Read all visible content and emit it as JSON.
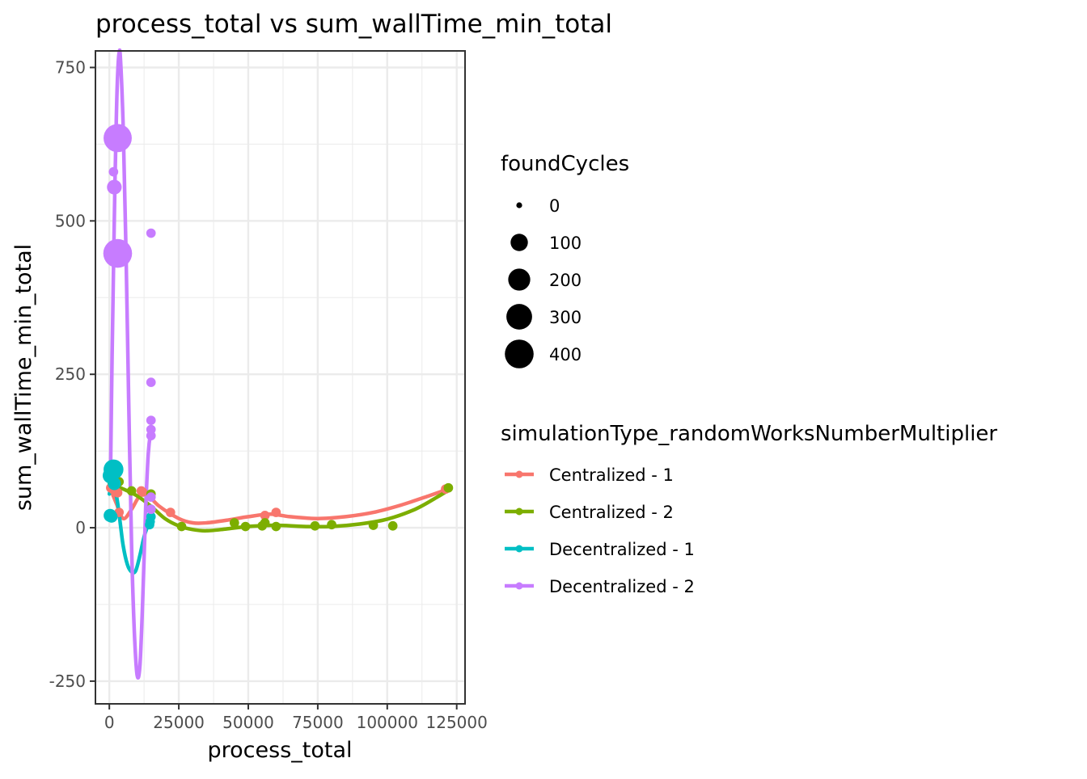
{
  "chart_data": {
    "type": "scatter",
    "title": "process_total  vs  sum_wallTime_min_total",
    "xlabel": "process_total",
    "ylabel": "sum_wallTime_min_total",
    "xlim": [
      -5000,
      128000
    ],
    "ylim": [
      -287,
      777
    ],
    "x_ticks": [
      0,
      25000,
      50000,
      75000,
      100000,
      125000
    ],
    "x_tick_labels": [
      "0",
      "25000",
      "50000",
      "75000",
      "100000",
      "125000"
    ],
    "y_ticks": [
      -250,
      0,
      250,
      500,
      750
    ],
    "y_tick_labels": [
      "-250",
      "0",
      "250",
      "500",
      "750"
    ],
    "grid": true,
    "legend_position": "right",
    "size_legend": {
      "title": "foundCycles",
      "entries": [
        {
          "label": "0",
          "value": 0
        },
        {
          "label": "100",
          "value": 100
        },
        {
          "label": "200",
          "value": 200
        },
        {
          "label": "300",
          "value": 300
        },
        {
          "label": "400",
          "value": 400
        }
      ]
    },
    "color_legend_title": "simulationType_randomWorksNumberMultiplier",
    "series": [
      {
        "name": "Centralized - 1",
        "color": "#F8766D",
        "points": [
          [
            500,
            65,
            10
          ],
          [
            1500,
            62,
            10
          ],
          [
            3000,
            57,
            10
          ],
          [
            3500,
            25,
            10
          ],
          [
            11500,
            60,
            10
          ],
          [
            12000,
            58,
            10
          ],
          [
            22000,
            25,
            10
          ],
          [
            56000,
            20,
            10
          ],
          [
            60000,
            25,
            10
          ],
          [
            121000,
            63,
            10
          ]
        ],
        "smooth": [
          [
            0,
            68
          ],
          [
            2500,
            40
          ],
          [
            5000,
            15
          ],
          [
            8000,
            30
          ],
          [
            11000,
            52
          ],
          [
            14000,
            52
          ],
          [
            18000,
            35
          ],
          [
            25000,
            15
          ],
          [
            30000,
            8
          ],
          [
            35000,
            8
          ],
          [
            42000,
            12
          ],
          [
            50000,
            18
          ],
          [
            58000,
            22
          ],
          [
            65000,
            18
          ],
          [
            75000,
            15
          ],
          [
            85000,
            18
          ],
          [
            95000,
            25
          ],
          [
            105000,
            37
          ],
          [
            115000,
            52
          ],
          [
            122500,
            64
          ]
        ]
      },
      {
        "name": "Centralized - 2",
        "color": "#7CAE00",
        "points": [
          [
            3500,
            75,
            10
          ],
          [
            8000,
            60,
            10
          ],
          [
            15000,
            55,
            10
          ],
          [
            26000,
            2,
            10
          ],
          [
            45000,
            8,
            10
          ],
          [
            49000,
            2,
            10
          ],
          [
            55000,
            3,
            10
          ],
          [
            56000,
            8,
            10
          ],
          [
            60000,
            2,
            10
          ],
          [
            74000,
            3,
            10
          ],
          [
            80000,
            5,
            10
          ],
          [
            95000,
            4,
            10
          ],
          [
            102000,
            3,
            10
          ],
          [
            122000,
            65,
            10
          ]
        ],
        "smooth": [
          [
            0,
            72
          ],
          [
            5000,
            63
          ],
          [
            10000,
            52
          ],
          [
            15000,
            35
          ],
          [
            20000,
            15
          ],
          [
            25000,
            3
          ],
          [
            30000,
            -3
          ],
          [
            35000,
            -5
          ],
          [
            42000,
            -2
          ],
          [
            50000,
            2
          ],
          [
            60000,
            4
          ],
          [
            70000,
            2
          ],
          [
            80000,
            2
          ],
          [
            90000,
            6
          ],
          [
            100000,
            14
          ],
          [
            110000,
            30
          ],
          [
            118000,
            50
          ],
          [
            123000,
            64
          ]
        ]
      },
      {
        "name": "Decentralized - 1",
        "color": "#00BFC4",
        "points": [
          [
            500,
            85,
            80
          ],
          [
            1500,
            95,
            150
          ],
          [
            1800,
            72,
            40
          ],
          [
            300,
            20,
            40
          ],
          [
            800,
            18,
            30
          ],
          [
            14500,
            5,
            10
          ],
          [
            14700,
            10,
            10
          ],
          [
            15000,
            18,
            10
          ],
          [
            15000,
            30,
            10
          ]
        ],
        "smooth": [
          [
            0,
            55
          ],
          [
            1000,
            73
          ],
          [
            2000,
            65
          ],
          [
            3000,
            40
          ],
          [
            4000,
            5
          ],
          [
            5000,
            -30
          ],
          [
            6500,
            -60
          ],
          [
            8000,
            -72
          ],
          [
            9500,
            -70
          ],
          [
            11000,
            -45
          ],
          [
            12500,
            -15
          ],
          [
            14000,
            5
          ],
          [
            15000,
            15
          ]
        ]
      },
      {
        "name": "Decentralized - 2",
        "color": "#C77CFF",
        "points": [
          [
            1500,
            580,
            10
          ],
          [
            1800,
            555,
            60
          ],
          [
            3000,
            635,
            380
          ],
          [
            3000,
            447,
            400
          ],
          [
            15000,
            480,
            10
          ],
          [
            15000,
            237,
            10
          ],
          [
            15000,
            175,
            10
          ],
          [
            15000,
            160,
            10
          ],
          [
            15000,
            150,
            10
          ],
          [
            15000,
            50,
            10
          ],
          [
            15000,
            30,
            10
          ]
        ],
        "smooth": [
          [
            500,
            110
          ],
          [
            1000,
            280
          ],
          [
            1500,
            420
          ],
          [
            2000,
            560
          ],
          [
            2500,
            665
          ],
          [
            3000,
            740
          ],
          [
            3500,
            773
          ],
          [
            4000,
            765
          ],
          [
            5000,
            650
          ],
          [
            6000,
            450
          ],
          [
            7000,
            200
          ],
          [
            8000,
            -30
          ],
          [
            9000,
            -170
          ],
          [
            10000,
            -240
          ],
          [
            11000,
            -225
          ],
          [
            12000,
            -120
          ],
          [
            13000,
            20
          ],
          [
            14000,
            120
          ],
          [
            15000,
            160
          ]
        ]
      }
    ]
  }
}
